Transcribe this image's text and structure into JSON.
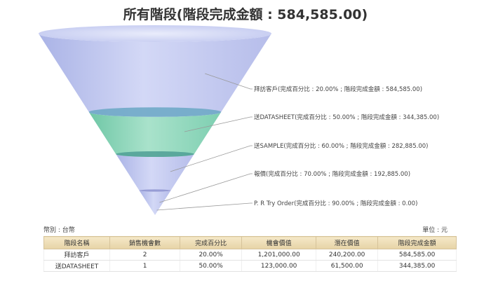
{
  "title": "所有階段(階段完成金額 : 584,585.00)",
  "colors": {
    "stage1": "#c3c9ee",
    "stage2": "#8fd6bb",
    "stage3": "#c8cbf0",
    "stage4": "#c8cbf0",
    "stage5": "#90dcc0",
    "leader": "#999999"
  },
  "chart_data": {
    "type": "funnel",
    "title": "所有階段(階段完成金額 : 584,585.00)",
    "stages": [
      {
        "label": "拜訪客戶(完成百分比 : 20.00% ; 階段完成金額 : 584,585.00)",
        "name": "拜訪客戶",
        "percent": 20.0,
        "amount": 584585.0
      },
      {
        "label": "送DATASHEET(完成百分比 : 50.00% ; 階段完成金額 : 344,385.00)",
        "name": "送DATASHEET",
        "percent": 50.0,
        "amount": 344385.0
      },
      {
        "label": "送SAMPLE(完成百分比 : 60.00% ; 階段完成金額 : 282,885.00)",
        "name": "送SAMPLE",
        "percent": 60.0,
        "amount": 282885.0
      },
      {
        "label": "報價(完成百分比 : 70.00% ; 階段完成金額 : 192,885.00)",
        "name": "報價",
        "percent": 70.0,
        "amount": 192885.0
      },
      {
        "label": "P. R Try Order(完成百分比 : 90.00% ; 階段完成金額 : 0.00)",
        "name": "P. R Try Order",
        "percent": 90.0,
        "amount": 0.0
      }
    ]
  },
  "meta": {
    "currency": "幣別 : 台幣",
    "unit": "單位 : 元"
  },
  "table": {
    "headers": [
      "階段名稱",
      "銷售機會數",
      "完成百分比",
      "機會價值",
      "潛在價值",
      "階段完成金額"
    ],
    "rows": [
      [
        "拜訪客戶",
        "2",
        "20.00%",
        "1,201,000.00",
        "240,200.00",
        "584,585.00"
      ],
      [
        "送DATASHEET",
        "1",
        "50.00%",
        "123,000.00",
        "61,500.00",
        "344,385.00"
      ]
    ]
  }
}
